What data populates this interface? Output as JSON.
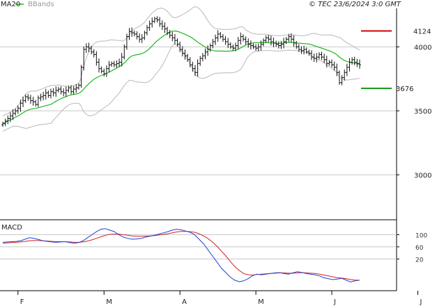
{
  "header": {
    "legend_ma": "MA20",
    "legend_bb": "BBands",
    "source": "© TEC 23/6/2024 3:0 GMT"
  },
  "colors": {
    "ma": "#1fb51f",
    "bbands": "#b8b8b8",
    "price": "#111111",
    "resistance": "#d40000",
    "support": "#1a9a1a",
    "macd": "#2040d0",
    "signal": "#d42020",
    "grid": "#c8c8c8"
  },
  "chart_data": [
    {
      "type": "ohlc",
      "title": "",
      "ylim": [
        2660,
        4290
      ],
      "yticks": [
        {
          "label": "4000",
          "value": 4000
        },
        {
          "label": "3500",
          "value": 3500
        },
        {
          "label": "3000",
          "value": 3000
        }
      ],
      "x_labels": [
        {
          "label": "F",
          "index": 6
        },
        {
          "label": "M",
          "index": 40
        },
        {
          "label": "A",
          "index": 70
        },
        {
          "label": "M",
          "index": 100
        },
        {
          "label": "J",
          "index": 130
        },
        {
          "label": "J",
          "index": 164
        }
      ],
      "resistance": {
        "value": 4124,
        "label": "4124"
      },
      "support": {
        "value": 3676,
        "label": "3676"
      },
      "close": [
        3400,
        3420,
        3440,
        3460,
        3480,
        3500,
        3520,
        3560,
        3580,
        3610,
        3600,
        3580,
        3570,
        3550,
        3600,
        3610,
        3620,
        3640,
        3620,
        3650,
        3640,
        3660,
        3670,
        3650,
        3640,
        3660,
        3680,
        3650,
        3670,
        3680,
        3700,
        3840,
        3980,
        4000,
        3990,
        3960,
        3940,
        3880,
        3830,
        3810,
        3790,
        3830,
        3860,
        3870,
        3860,
        3870,
        3880,
        3920,
        4000,
        4080,
        4120,
        4110,
        4100,
        4080,
        4060,
        4070,
        4110,
        4150,
        4180,
        4200,
        4220,
        4210,
        4180,
        4160,
        4140,
        4110,
        4090,
        4070,
        4050,
        4020,
        3980,
        3950,
        3930,
        3900,
        3860,
        3830,
        3800,
        3870,
        3910,
        3930,
        3960,
        3980,
        4010,
        4040,
        4070,
        4100,
        4080,
        4060,
        4040,
        4020,
        4000,
        3990,
        4010,
        4050,
        4080,
        4060,
        4040,
        4020,
        4010,
        4000,
        3990,
        4000,
        4020,
        4050,
        4070,
        4060,
        4040,
        4030,
        4020,
        4010,
        4020,
        4040,
        4060,
        4080,
        4060,
        4030,
        4000,
        3980,
        3970,
        3980,
        3960,
        3950,
        3920,
        3910,
        3920,
        3940,
        3920,
        3900,
        3870,
        3880,
        3860,
        3840,
        3800,
        3720,
        3760,
        3800,
        3840,
        3880,
        3900,
        3880,
        3870,
        3860
      ],
      "macd": [
        75,
        76,
        77,
        78,
        80,
        85,
        90,
        88,
        84,
        80,
        78,
        76,
        75,
        76,
        77,
        74,
        72,
        74,
        80,
        90,
        100,
        110,
        118,
        120,
        115,
        110,
        100,
        92,
        88,
        85,
        86,
        88,
        92,
        95,
        98,
        102,
        106,
        110,
        115,
        118,
        116,
        112,
        108,
        100,
        85,
        70,
        50,
        30,
        10,
        -10,
        -25,
        -40,
        -50,
        -55,
        -52,
        -45,
        -35,
        -30,
        -32,
        -30,
        -28,
        -26,
        -25,
        -28,
        -30,
        -26,
        -22,
        -24,
        -28,
        -30,
        -32,
        -36,
        -42,
        -45,
        -48,
        -46,
        -44,
        -50,
        -56,
        -52,
        -50
      ],
      "signal": [
        72,
        73,
        74,
        75,
        76,
        78,
        80,
        81,
        81,
        80,
        79,
        78,
        77,
        77,
        77,
        76,
        75,
        75,
        76,
        79,
        83,
        88,
        93,
        98,
        101,
        102,
        102,
        100,
        98,
        96,
        95,
        95,
        95,
        96,
        97,
        99,
        101,
        103,
        106,
        109,
        111,
        111,
        110,
        108,
        103,
        96,
        87,
        76,
        62,
        46,
        30,
        12,
        -5,
        -18,
        -28,
        -32,
        -33,
        -31,
        -30,
        -29,
        -28,
        -27,
        -26,
        -26,
        -27,
        -27,
        -26,
        -25,
        -26,
        -27,
        -28,
        -30,
        -33,
        -36,
        -39,
        -42,
        -43,
        -45,
        -48,
        -50,
        -50
      ],
      "macd_ylim": [
        -80,
        140
      ],
      "macd_label": "MACD",
      "macd_ticks": [
        {
          "label": "100",
          "value": 100
        },
        {
          "label": "60",
          "value": 60
        },
        {
          "label": "20",
          "value": 20
        }
      ]
    }
  ]
}
